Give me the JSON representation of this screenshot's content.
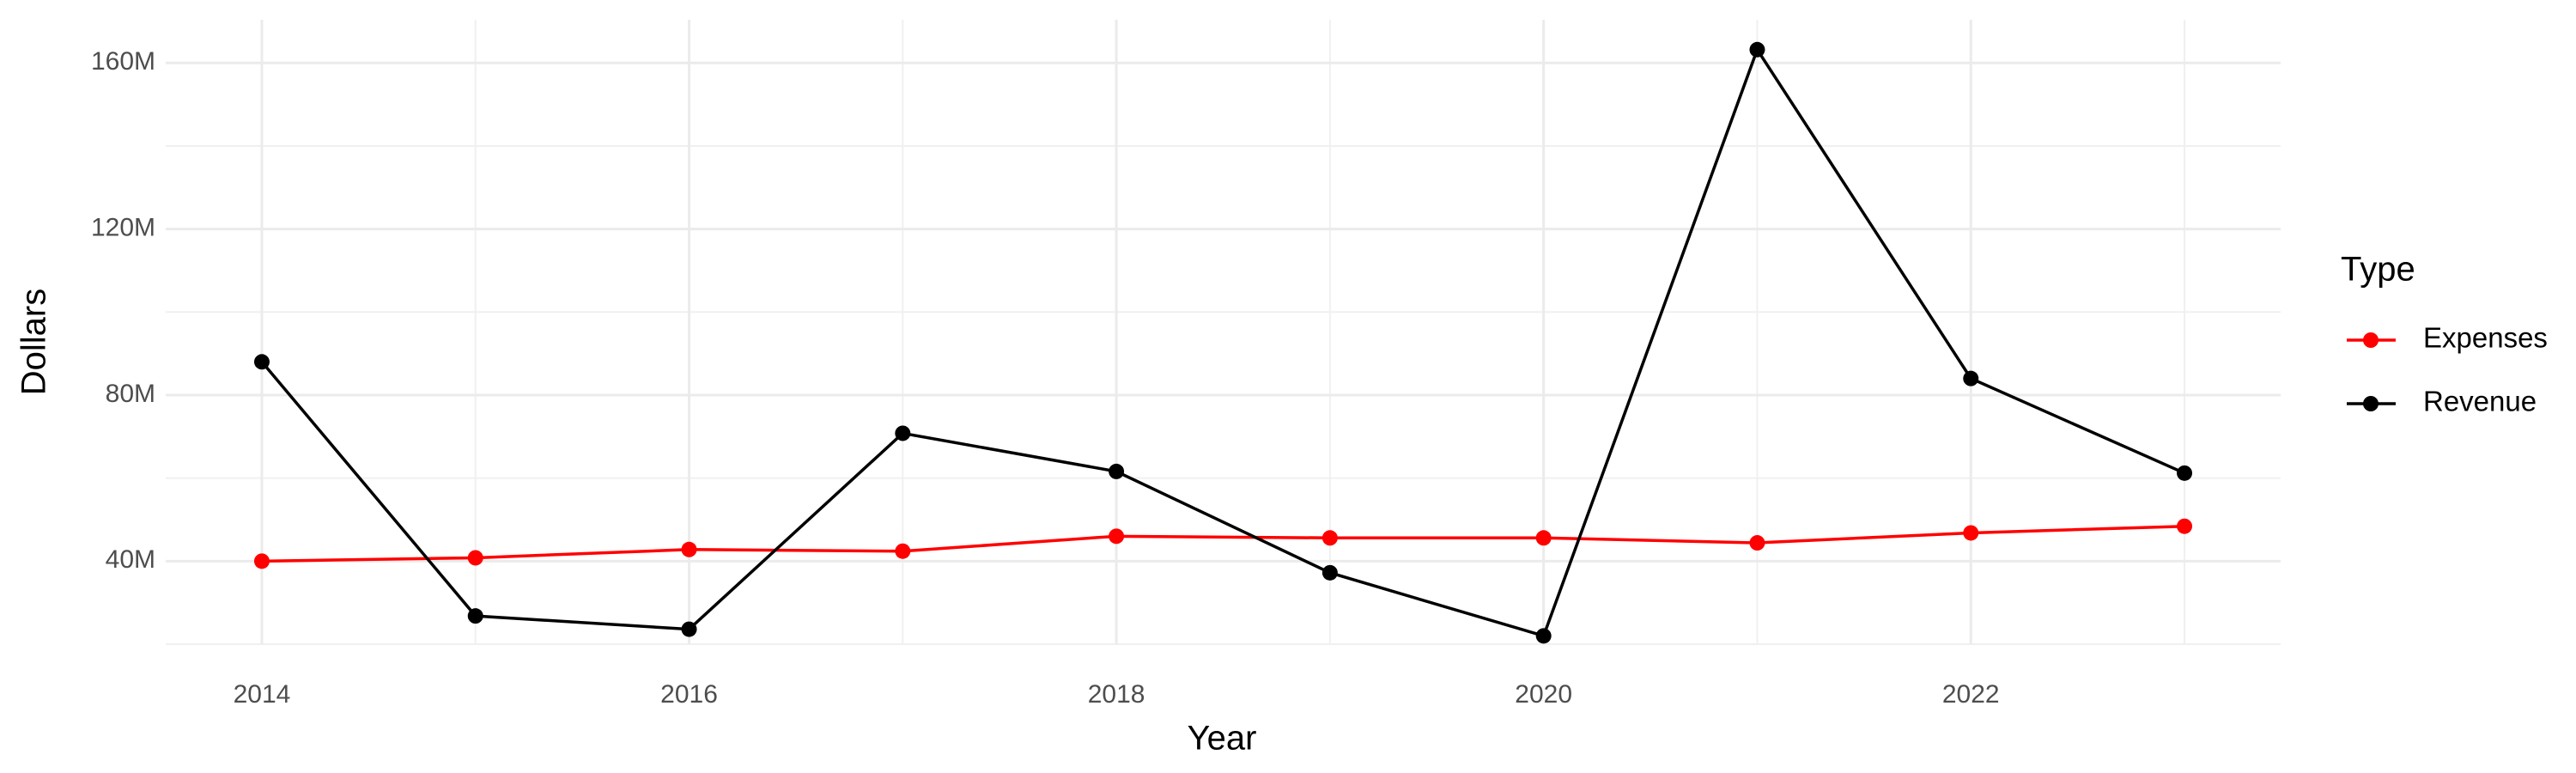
{
  "chart_data": {
    "type": "line",
    "x_label": "Year",
    "y_label": "Dollars",
    "legend_title": "Type",
    "x": [
      2014,
      2015,
      2016,
      2017,
      2018,
      2019,
      2020,
      2021,
      2022,
      2023
    ],
    "series": [
      {
        "name": "Expenses",
        "color": "#ff0000",
        "values": [
          40000000,
          40800000,
          42800000,
          42400000,
          46000000,
          45600000,
          45600000,
          44400000,
          46800000,
          48400000
        ]
      },
      {
        "name": "Revenue",
        "color": "#000000",
        "values": [
          88000000,
          26800000,
          23600000,
          70800000,
          61600000,
          37200000,
          22000000,
          163200000,
          84000000,
          61200000
        ]
      }
    ],
    "xlim": [
      2013.55,
      2023.45
    ],
    "xticks": [
      2014,
      2016,
      2018,
      2020,
      2022
    ],
    "ylim": [
      20000000,
      170400000
    ],
    "yticks": [
      {
        "value": 40000000,
        "label": "40M"
      },
      {
        "value": 80000000,
        "label": "80M"
      },
      {
        "value": 120000000,
        "label": "120M"
      },
      {
        "value": 160000000,
        "label": "160M"
      }
    ],
    "grid": true,
    "legend": "right"
  }
}
